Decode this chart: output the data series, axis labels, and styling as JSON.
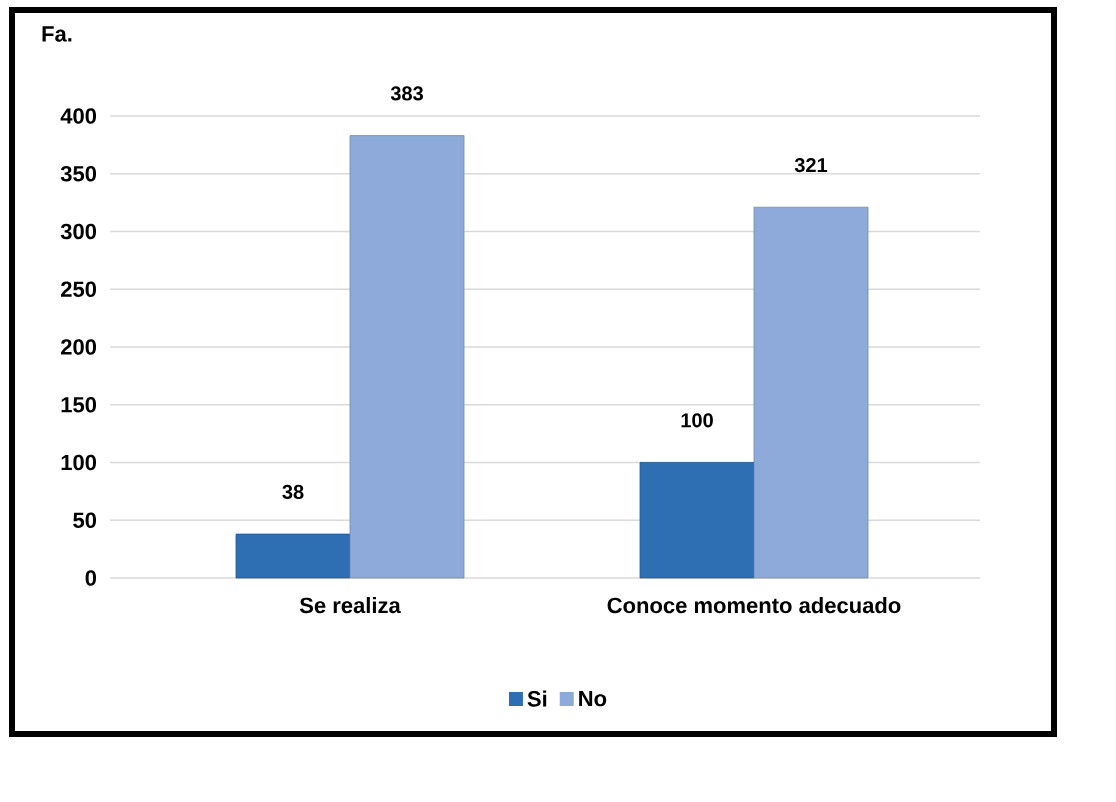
{
  "chart_data": {
    "type": "bar",
    "ylabel": "Fa.",
    "categories": [
      "Se realiza",
      "Conoce momento adecuado"
    ],
    "series": [
      {
        "name": "Si",
        "color": "#2e6fb4",
        "values": [
          38,
          100
        ]
      },
      {
        "name": "No",
        "color": "#8eaadb",
        "values": [
          383,
          321
        ]
      }
    ],
    "ylim": [
      0,
      400
    ],
    "yticks": [
      0,
      50,
      100,
      150,
      200,
      250,
      300,
      350,
      400
    ],
    "grid": "y",
    "legend": "bottom",
    "data_labels": true
  }
}
